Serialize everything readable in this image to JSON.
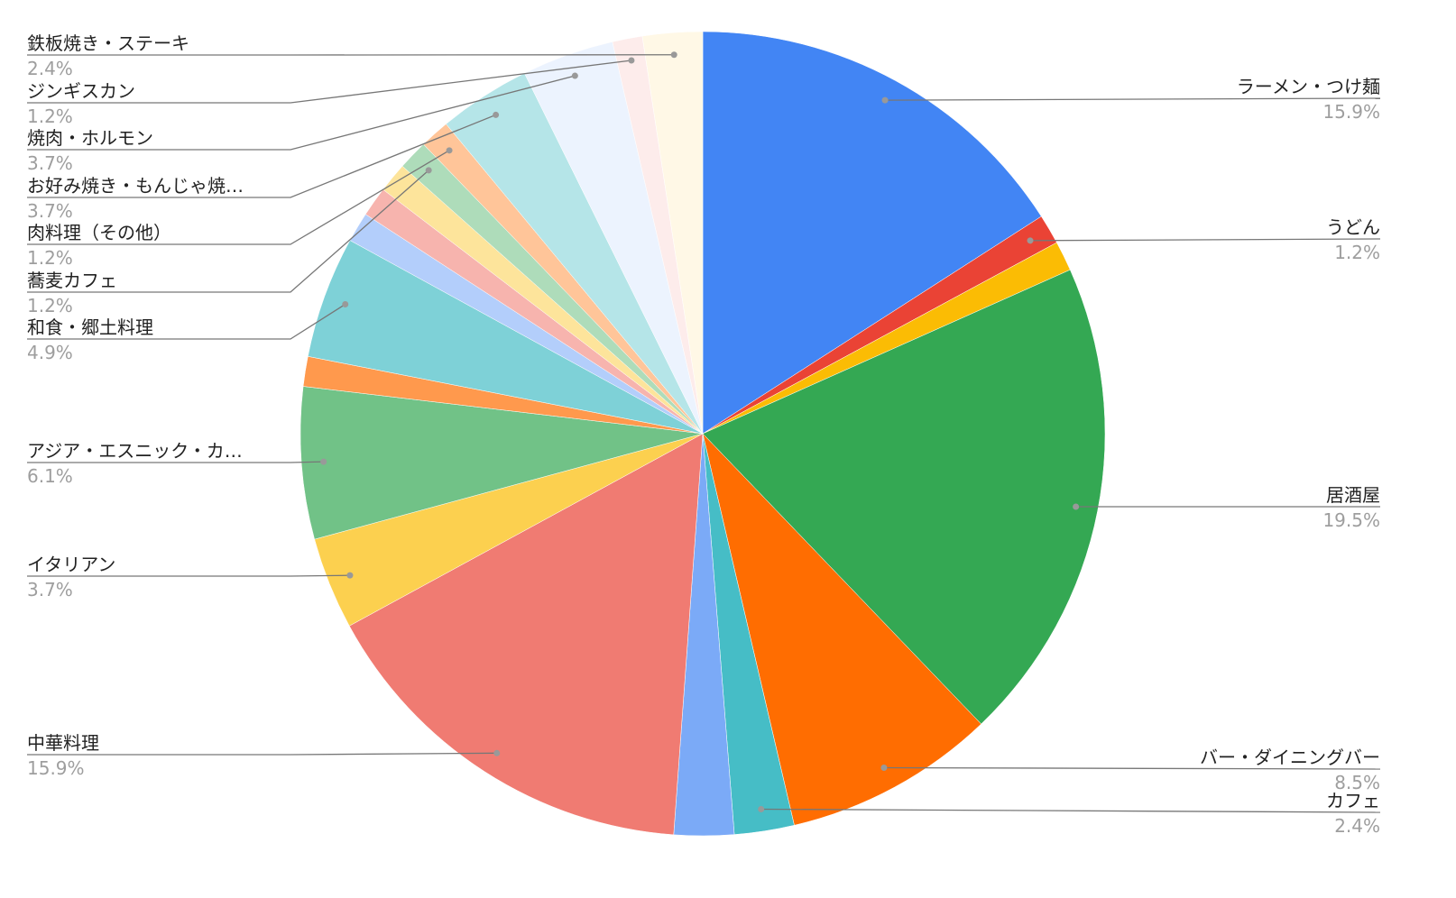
{
  "chart_data": {
    "type": "pie",
    "categories": [
      "ラーメン・つけ麺",
      "うどん",
      null,
      "居酒屋",
      "バー・ダイニングバー",
      "カフェ",
      null,
      "中華料理",
      "イタリアン",
      "アジア・エスニック・カ…",
      null,
      "和食・郷土料理",
      null,
      null,
      null,
      "蕎麦カフェ",
      "肉料理（その他）",
      "お好み焼き・もんじゃ焼…",
      "焼肉・ホルモン",
      "ジンギスカン",
      "鉄板焼き・ステーキ"
    ],
    "values": [
      15.9,
      1.2,
      1.2,
      19.5,
      8.5,
      2.4,
      2.4,
      15.9,
      3.7,
      6.1,
      1.2,
      4.9,
      1.2,
      1.2,
      1.2,
      1.2,
      1.2,
      3.7,
      3.7,
      1.2,
      2.4
    ],
    "value_labels": [
      "15.9%",
      "1.2%",
      null,
      "19.5%",
      "8.5%",
      "2.4%",
      null,
      "15.9%",
      "3.7%",
      "6.1%",
      null,
      "4.9%",
      null,
      null,
      null,
      "1.2%",
      "1.2%",
      "3.7%",
      "3.7%",
      "1.2%",
      "2.4%"
    ],
    "colors": [
      "#4285f4",
      "#ea4335",
      "#fbbc04",
      "#34a853",
      "#ff6d01",
      "#46bdc6",
      "#7baaf7",
      "#f07b72",
      "#fcd04f",
      "#71c287",
      "#ff994d",
      "#7ed1d7",
      "#b3cefb",
      "#f7b4ae",
      "#fde49b",
      "#aedcba",
      "#ffc599",
      "#b5e5e8",
      "#ecf3fe",
      "#fdeceb",
      "#fff8e6"
    ]
  }
}
